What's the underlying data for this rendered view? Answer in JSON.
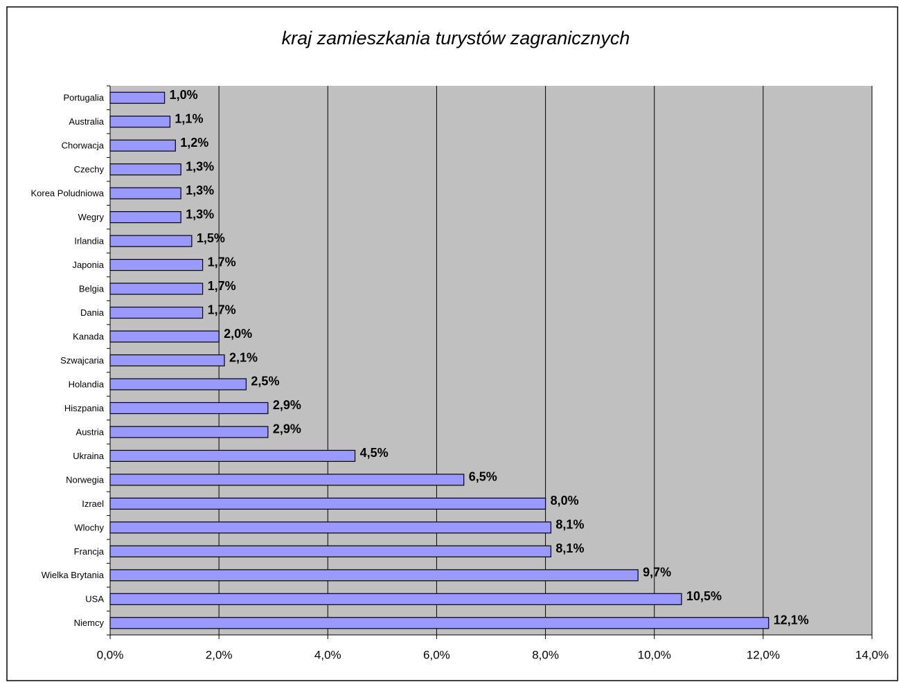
{
  "chart_data": {
    "type": "bar",
    "orientation": "horizontal",
    "title": "kraj zamieszkania turystów zagranicznych",
    "categories": [
      "Portugalia",
      "Australia",
      "Chorwacja",
      "Czechy",
      "Korea Poludniowa",
      "Wegry",
      "Irlandia",
      "Japonia",
      "Belgia",
      "Dania",
      "Kanada",
      "Szwajcaria",
      "Holandia",
      "Hiszpania",
      "Austria",
      "Ukraina",
      "Norwegia",
      "Izrael",
      "Wlochy",
      "Francja",
      "Wielka Brytania",
      "USA",
      "Niemcy"
    ],
    "values": [
      1.0,
      1.1,
      1.2,
      1.3,
      1.3,
      1.3,
      1.5,
      1.7,
      1.7,
      1.7,
      2.0,
      2.1,
      2.5,
      2.9,
      2.9,
      4.5,
      6.5,
      8.0,
      8.1,
      8.1,
      9.7,
      10.5,
      12.1
    ],
    "value_labels": [
      "1,0%",
      "1,1%",
      "1,2%",
      "1,3%",
      "1,3%",
      "1,3%",
      "1,5%",
      "1,7%",
      "1,7%",
      "1,7%",
      "2,0%",
      "2,1%",
      "2,5%",
      "2,9%",
      "2,9%",
      "4,5%",
      "6,5%",
      "8,0%",
      "8,1%",
      "8,1%",
      "9,7%",
      "10,5%",
      "12,1%"
    ],
    "color": "#9999ff",
    "xlim": [
      0,
      14
    ],
    "xticks": [
      {
        "value": 0,
        "label": "0,0%"
      },
      {
        "value": 2,
        "label": "2,0%"
      },
      {
        "value": 4,
        "label": "4,0%"
      },
      {
        "value": 6,
        "label": "6,0%"
      },
      {
        "value": 8,
        "label": "8,0%"
      },
      {
        "value": 10,
        "label": "10,0%"
      },
      {
        "value": 12,
        "label": "12,0%"
      },
      {
        "value": 14,
        "label": "14,0%"
      }
    ],
    "grid": true
  }
}
